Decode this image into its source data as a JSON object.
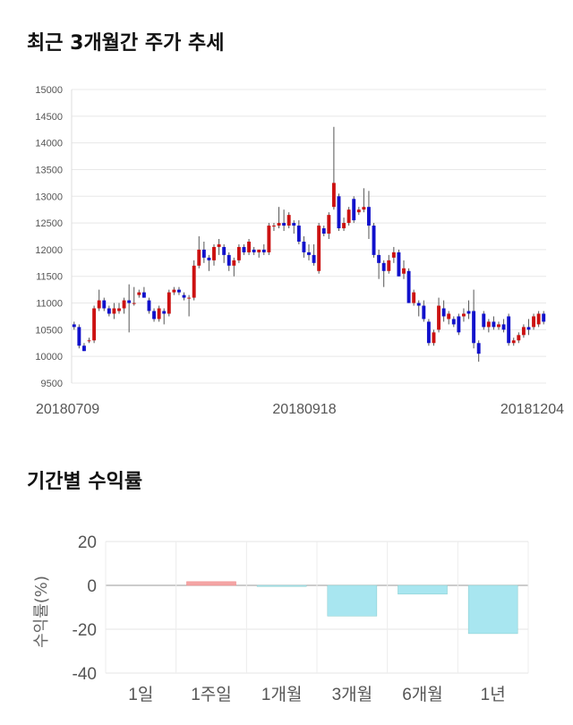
{
  "sections": {
    "price_title": "최근 3개월간 주가 추세",
    "return_title": "기간별 수익률"
  },
  "chart_data": [
    {
      "type": "candlestick",
      "title": "최근 3개월간 주가 추세",
      "ylim": [
        9500,
        15000
      ],
      "yticks": [
        9500,
        10000,
        10500,
        11000,
        11500,
        12000,
        12500,
        13000,
        13500,
        14000,
        14500,
        15000
      ],
      "xtick_labels": [
        "20180709",
        "20180918",
        "20181204"
      ],
      "grid": true,
      "up_color": "#cc1111",
      "down_color": "#1111cc",
      "candles": [
        [
          10600,
          10650,
          10500,
          10550
        ],
        [
          10550,
          10600,
          10150,
          10200
        ],
        [
          10200,
          10250,
          10100,
          10100
        ],
        [
          10300,
          10350,
          10250,
          10300
        ],
        [
          10300,
          10950,
          10250,
          10900
        ],
        [
          10900,
          11250,
          10850,
          11050
        ],
        [
          11050,
          11100,
          10850,
          10900
        ],
        [
          10900,
          10950,
          10750,
          10800
        ],
        [
          10800,
          11000,
          10700,
          10900
        ],
        [
          10850,
          11000,
          10800,
          10900
        ],
        [
          10900,
          11100,
          10800,
          11050
        ],
        [
          11050,
          11350,
          10450,
          11000
        ],
        [
          11000,
          11300,
          10950,
          11000
        ],
        [
          11150,
          11250,
          11100,
          11200
        ],
        [
          11200,
          11300,
          11100,
          11100
        ],
        [
          11050,
          11100,
          10800,
          10850
        ],
        [
          10850,
          10900,
          10650,
          10700
        ],
        [
          10700,
          10950,
          10650,
          10900
        ],
        [
          10850,
          10900,
          10600,
          10800
        ],
        [
          10800,
          11250,
          10750,
          11200
        ],
        [
          11200,
          11300,
          11150,
          11250
        ],
        [
          11250,
          11300,
          11150,
          11200
        ],
        [
          11150,
          11200,
          11050,
          11100
        ],
        [
          11100,
          11150,
          10750,
          11100
        ],
        [
          11100,
          11800,
          11050,
          11700
        ],
        [
          11700,
          12250,
          11650,
          12000
        ],
        [
          12000,
          12150,
          11750,
          11850
        ],
        [
          11850,
          11900,
          11600,
          11800
        ],
        [
          11800,
          12100,
          11700,
          12050
        ],
        [
          12050,
          12200,
          11900,
          12100
        ],
        [
          12050,
          12100,
          11750,
          11900
        ],
        [
          11900,
          11950,
          11600,
          11700
        ],
        [
          11700,
          11850,
          11500,
          11800
        ],
        [
          11800,
          12100,
          11750,
          12050
        ],
        [
          12050,
          12100,
          11900,
          11950
        ],
        [
          11950,
          12200,
          11900,
          12150
        ],
        [
          12000,
          12050,
          11900,
          11950
        ],
        [
          11950,
          12000,
          11850,
          12000
        ],
        [
          12000,
          12100,
          11900,
          11950
        ],
        [
          11950,
          12500,
          11900,
          12450
        ],
        [
          12450,
          12500,
          12350,
          12450
        ],
        [
          12450,
          12800,
          12400,
          12500
        ],
        [
          12500,
          12750,
          12350,
          12450
        ],
        [
          12450,
          12700,
          12400,
          12650
        ],
        [
          12500,
          12550,
          12300,
          12450
        ],
        [
          12450,
          12550,
          12100,
          12150
        ],
        [
          12150,
          12250,
          11850,
          11950
        ],
        [
          11950,
          12100,
          11800,
          11900
        ],
        [
          11900,
          12100,
          11700,
          11750
        ],
        [
          11600,
          12500,
          11550,
          12450
        ],
        [
          12400,
          12450,
          12250,
          12300
        ],
        [
          12300,
          12700,
          12200,
          12650
        ],
        [
          12800,
          14300,
          12750,
          13250
        ],
        [
          13000,
          13050,
          12350,
          12400
        ],
        [
          12400,
          12600,
          12350,
          12500
        ],
        [
          12500,
          12800,
          12450,
          12750
        ],
        [
          12950,
          13000,
          12500,
          12550
        ],
        [
          12700,
          12800,
          12650,
          12750
        ],
        [
          12750,
          13150,
          12700,
          12800
        ],
        [
          12800,
          13100,
          12200,
          12450
        ],
        [
          12450,
          12500,
          11850,
          11900
        ],
        [
          11900,
          12000,
          11450,
          11750
        ],
        [
          11750,
          11800,
          11300,
          11600
        ],
        [
          11600,
          11900,
          11550,
          11800
        ],
        [
          11850,
          12050,
          11750,
          11950
        ],
        [
          11950,
          12000,
          11500,
          11500
        ],
        [
          11550,
          11800,
          11450,
          11650
        ],
        [
          11600,
          11650,
          11000,
          11000
        ],
        [
          11000,
          11250,
          10950,
          11200
        ],
        [
          11000,
          11050,
          10750,
          10950
        ],
        [
          10950,
          11050,
          10650,
          10700
        ],
        [
          10650,
          10700,
          10200,
          10250
        ],
        [
          10250,
          10500,
          10200,
          10450
        ],
        [
          10500,
          11100,
          10450,
          10950
        ],
        [
          10900,
          11050,
          10650,
          10750
        ],
        [
          10700,
          10850,
          10600,
          10800
        ],
        [
          10700,
          10750,
          10550,
          10600
        ],
        [
          10750,
          10800,
          10400,
          10450
        ],
        [
          10750,
          10900,
          10650,
          10800
        ],
        [
          10850,
          11050,
          10700,
          10800
        ],
        [
          10850,
          11250,
          10150,
          10250
        ],
        [
          10250,
          10300,
          9900,
          10050
        ],
        [
          10800,
          10850,
          10500,
          10550
        ],
        [
          10550,
          10700,
          10450,
          10650
        ],
        [
          10650,
          10750,
          10500,
          10550
        ],
        [
          10550,
          10650,
          10500,
          10600
        ],
        [
          10600,
          10700,
          10450,
          10500
        ],
        [
          10750,
          10800,
          10200,
          10250
        ],
        [
          10250,
          10350,
          10200,
          10300
        ],
        [
          10300,
          10450,
          10250,
          10400
        ],
        [
          10400,
          10600,
          10350,
          10550
        ],
        [
          10550,
          10700,
          10400,
          10500
        ],
        [
          10550,
          10800,
          10500,
          10750
        ],
        [
          10600,
          10850,
          10550,
          10800
        ],
        [
          10800,
          10850,
          10600,
          10650
        ]
      ]
    },
    {
      "type": "bar",
      "title": "기간별 수익률",
      "categories": [
        "1일",
        "1주일",
        "1개월",
        "3개월",
        "6개월",
        "1년"
      ],
      "values": [
        0,
        1.7,
        -0.5,
        -14,
        -4,
        -22
      ],
      "ylabel": "수익률(%)",
      "ylim": [
        -40,
        20
      ],
      "yticks": [
        -40,
        -20,
        0,
        20
      ],
      "positive_color": "#f4a4a4",
      "negative_color": "#a8e6f0",
      "grid": true
    }
  ]
}
